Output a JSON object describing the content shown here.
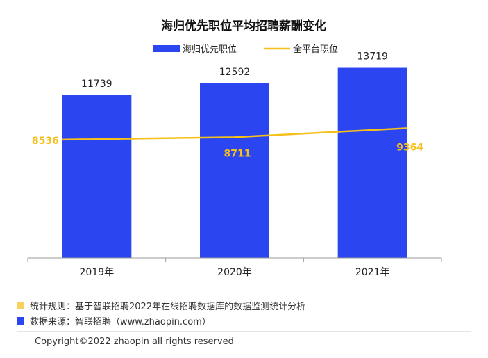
{
  "chart_data": {
    "type": "bar",
    "title": "海归优先职位平均招聘薪酬变化",
    "categories": [
      "2019年",
      "2020年",
      "2021年"
    ],
    "series": [
      {
        "name": "海归优先职位",
        "type": "bar",
        "values": [
          11739,
          12592,
          13719
        ],
        "color": "#2b46f0"
      },
      {
        "name": "全平台职位",
        "type": "line",
        "values": [
          8536,
          8711,
          9364
        ],
        "color": "#f5c01a"
      }
    ],
    "ylim": [
      0,
      15000
    ],
    "grid": false,
    "legend": "top-center"
  },
  "footnotes": [
    {
      "text": "统计规则：基于智联招聘2022年在线招聘数据库的数据监测统计分析",
      "color": "#f7d15a"
    },
    {
      "text": "数据来源：智联招聘（www.zhaopin.com）",
      "color": "#2b46f0"
    }
  ],
  "copyright": "Copyright©2022 zhaopin all rights reserved"
}
